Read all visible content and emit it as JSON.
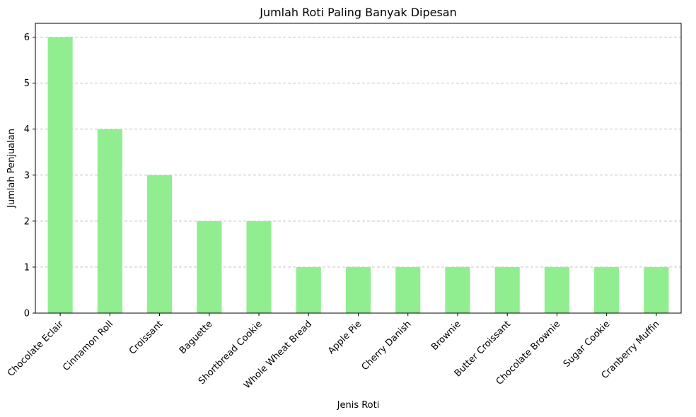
{
  "chart_data": {
    "type": "bar",
    "title": "Jumlah Roti Paling Banyak Dipesan",
    "xlabel": "Jenis Roti",
    "ylabel": "Jumlah Penjualan",
    "categories": [
      "Chocolate Eclair",
      "Cinnamon Roll",
      "Croissant",
      "Baguette",
      "Shortbread Cookie",
      "Whole Wheat Bread",
      "Apple Pie",
      "Cherry Danish",
      "Brownie",
      "Butter Croissant",
      "Chocolate Brownie",
      "Sugar Cookie",
      "Cranberry Muffin"
    ],
    "values": [
      6,
      4,
      3,
      2,
      2,
      1,
      1,
      1,
      1,
      1,
      1,
      1,
      1
    ],
    "ylim": [
      0,
      6.3
    ],
    "yticks": [
      0,
      1,
      2,
      3,
      4,
      5,
      6
    ],
    "grid": "y-dashed",
    "bar_color": "#90ee90",
    "x_tick_rotation": 45
  }
}
